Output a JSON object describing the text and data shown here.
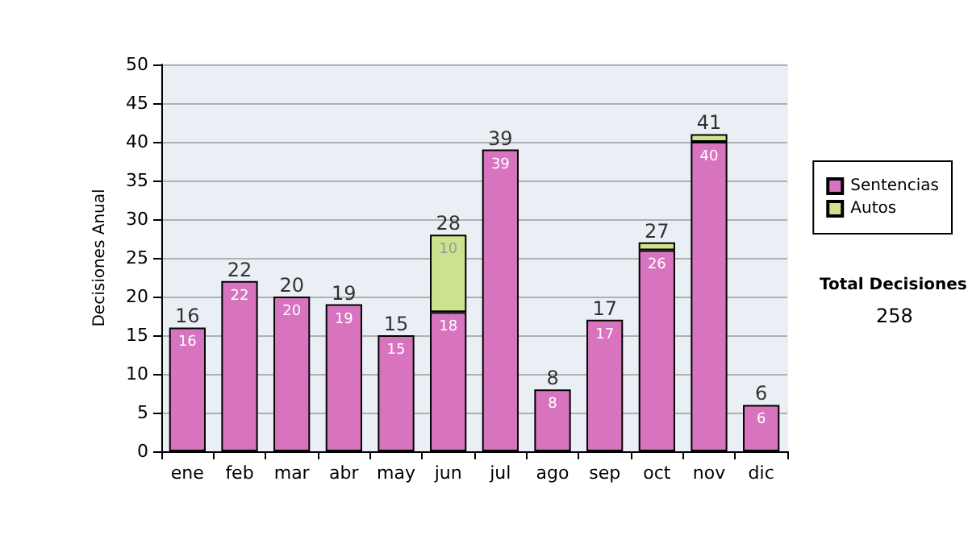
{
  "chart_data": {
    "type": "bar",
    "stacked": true,
    "ylabel": "Decisiones Anual",
    "categories": [
      "ene",
      "feb",
      "mar",
      "abr",
      "may",
      "jun",
      "jul",
      "ago",
      "sep",
      "oct",
      "nov",
      "dic"
    ],
    "series": [
      {
        "name": "Sentencias",
        "color": "#d874bf",
        "values": [
          16,
          22,
          20,
          19,
          15,
          18,
          39,
          8,
          17,
          26,
          40,
          6
        ],
        "value_labels": [
          "16",
          "22",
          "20",
          "19",
          "15",
          "18",
          "39",
          "8",
          "17",
          "26",
          "40",
          "6"
        ]
      },
      {
        "name": "Autos",
        "color": "#cce28f",
        "values": [
          null,
          null,
          null,
          null,
          null,
          10,
          null,
          null,
          null,
          1,
          1,
          null
        ],
        "value_labels": [
          null,
          null,
          null,
          null,
          null,
          "10",
          null,
          null,
          null,
          null,
          null,
          null
        ]
      }
    ],
    "totals": [
      "16",
      "22",
      "20",
      "19",
      "15",
      "28",
      "39",
      "8",
      "17",
      "27",
      "41",
      "6"
    ],
    "ylim": [
      0,
      50
    ],
    "yticks": [
      0,
      5,
      10,
      15,
      20,
      25,
      30,
      35,
      40,
      45,
      50
    ],
    "grid": "y",
    "legend": "right",
    "annotations": [
      "Total Decisiones",
      "258"
    ]
  }
}
